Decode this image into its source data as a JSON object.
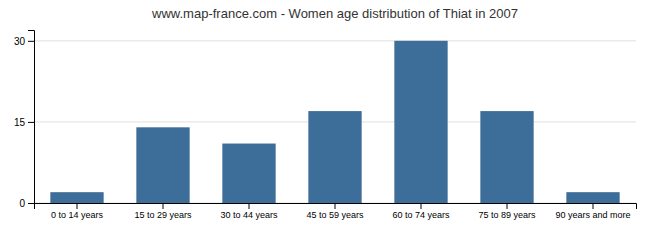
{
  "chart_data": {
    "type": "bar",
    "title": "www.map-france.com - Women age distribution of Thiat in 2007",
    "categories": [
      "0 to 14 years",
      "15 to 29 years",
      "30 to 44 years",
      "45 to 59 years",
      "60 to 74 years",
      "75 to 89 years",
      "90 years and more"
    ],
    "values": [
      2,
      14,
      11,
      17,
      30,
      17,
      2
    ],
    "color": "#3d6d99",
    "ylim": [
      0,
      32
    ],
    "yticks": [
      0,
      15,
      30
    ],
    "grid": true
  }
}
